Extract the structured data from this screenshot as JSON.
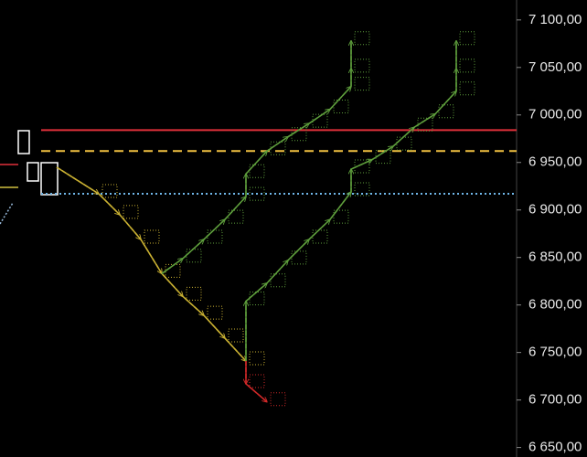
{
  "chart_data": {
    "type": "line",
    "ylim": [
      6640,
      7121
    ],
    "yticks": [
      {
        "value": 7100,
        "label": "7 100,00"
      },
      {
        "value": 7050,
        "label": "7 050,00"
      },
      {
        "value": 7000,
        "label": "7 000,00"
      },
      {
        "value": 6950,
        "label": "6 950,00"
      },
      {
        "value": 6900,
        "label": "6 900,00"
      },
      {
        "value": 6850,
        "label": "6 850,00"
      },
      {
        "value": 6800,
        "label": "6 800,00"
      },
      {
        "value": 6750,
        "label": "6 750,00"
      },
      {
        "value": 6700,
        "label": "6 700,00"
      },
      {
        "value": 6650,
        "label": "6 650,00"
      }
    ],
    "levels": [
      {
        "value": 6984,
        "color": "#e0303a",
        "style": "solid"
      },
      {
        "value": 6962,
        "color": "#f0c040",
        "style": "dashed"
      },
      {
        "value": 6917,
        "color": "#6fb6e8",
        "style": "dotted"
      }
    ],
    "series": [
      {
        "color": "#c9b032",
        "x": [
          0,
          2,
          3,
          4,
          5,
          6,
          7,
          8,
          9
        ],
        "values": [
          6945,
          6917,
          6895,
          6869,
          6833,
          6809,
          6789,
          6765,
          6741
        ]
      },
      {
        "color": "#d02828",
        "x": [
          9,
          9,
          10
        ],
        "values": [
          6741,
          6717,
          6698
        ]
      },
      {
        "color": "#5e9e3c",
        "x": [
          5,
          6,
          7,
          8,
          9,
          9,
          10,
          11,
          12,
          13,
          14,
          14,
          14
        ],
        "values": [
          6833,
          6849,
          6869,
          6890,
          6914,
          6938,
          6962,
          6977,
          6991,
          7006,
          7030,
          7049,
          7078
        ]
      },
      {
        "color": "#5e9e3c",
        "x": [
          9,
          9,
          10,
          11,
          12,
          13,
          14,
          14,
          15,
          16,
          17,
          18,
          19,
          19,
          19
        ],
        "values": [
          6741,
          6804,
          6823,
          6847,
          6869,
          6890,
          6919,
          6943,
          6953,
          6967,
          6987,
          7001,
          7025,
          7049,
          7078
        ]
      }
    ]
  }
}
